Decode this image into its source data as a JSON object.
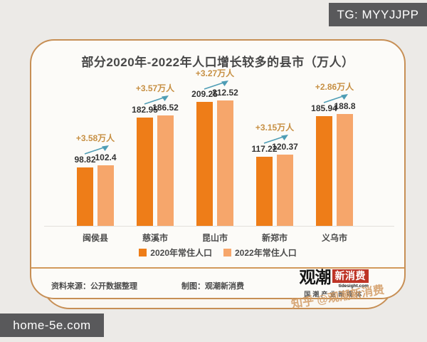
{
  "overlays": {
    "top_right_badge": "TG: MYYJJPP",
    "bottom_left_badge": "home-5e.com"
  },
  "chart_data": {
    "type": "bar",
    "title": "部分2020年-2022年人口增长较多的县市（万人）",
    "categories": [
      "闽侯县",
      "慈溪市",
      "昆山市",
      "新郑市",
      "义乌市"
    ],
    "series": [
      {
        "name": "2020年常住人口",
        "color": "#EE7D18",
        "values": [
          98.82,
          182.95,
          209.25,
          117.22,
          185.94
        ],
        "labels": [
          "98.82",
          "182.95",
          "209.25",
          "117.22",
          "185.94"
        ]
      },
      {
        "name": "2022年常住人口",
        "color": "#F6A66B",
        "values": [
          102.4,
          186.52,
          212.52,
          120.37,
          188.8
        ],
        "labels": [
          "102.4",
          "186.52",
          "212.52",
          "120.37",
          "188.8"
        ]
      }
    ],
    "growth_labels": [
      "+3.58万人",
      "+3.57万人",
      "+3.27万人",
      "+3.15万人",
      "+2.86万人"
    ],
    "annotation_color": "#C79044",
    "arrow_color": "#4E9DB5",
    "ylim": [
      0,
      260
    ],
    "grid": false,
    "legend_position": "bottom"
  },
  "footer": {
    "source_label": "资料来源：公开数据整理",
    "credit_label": "制图：观潮新消费",
    "logo": {
      "brand": "观潮",
      "badge": "新消费",
      "domain": "tidesight.com",
      "tagline": "国潮产业新媒体"
    }
  },
  "watermark": {
    "brand": "观潮",
    "badge": "新消费",
    "tagline": "国潮产业新媒体",
    "social": "知乎 @观潮新消费"
  }
}
